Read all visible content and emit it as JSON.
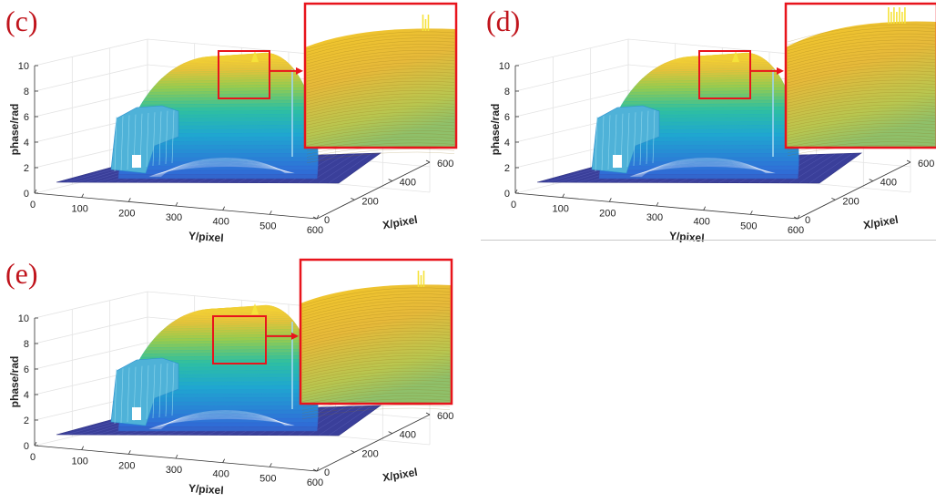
{
  "chart_data": [
    {
      "panel_label": "(c)",
      "type": "surface",
      "zlabel": "phase/rad",
      "ylabel": "Y/pixel",
      "xlabel": "X/pixel",
      "z_ticks": [
        "0",
        "2",
        "4",
        "6",
        "8",
        "10"
      ],
      "y_ticks": [
        "0",
        "100",
        "200",
        "300",
        "400",
        "500",
        "600"
      ],
      "x_ticks": [
        "0",
        "200",
        "400",
        "600"
      ],
      "zlim": [
        0,
        10
      ],
      "ylim": [
        0,
        600
      ],
      "xlim": [
        0,
        600
      ],
      "grid": true,
      "colormap": "parula",
      "inset": "zoomed view of surface peak",
      "peak_phase": 10
    },
    {
      "panel_label": "(d)",
      "type": "surface",
      "zlabel": "phase/rad",
      "ylabel": "Y/pixel",
      "xlabel": "X/pixel",
      "z_ticks": [
        "0",
        "2",
        "4",
        "6",
        "8",
        "10"
      ],
      "y_ticks": [
        "0",
        "100",
        "200",
        "300",
        "400",
        "500",
        "600"
      ],
      "x_ticks": [
        "0",
        "200",
        "400",
        "600"
      ],
      "zlim": [
        0,
        10
      ],
      "ylim": [
        0,
        600
      ],
      "xlim": [
        0,
        600
      ],
      "grid": true,
      "colormap": "parula",
      "inset": "zoomed view of surface peak",
      "peak_phase": 10
    },
    {
      "panel_label": "(e)",
      "type": "surface",
      "zlabel": "phase/rad",
      "ylabel": "Y/pixel",
      "xlabel": "X/pixel",
      "z_ticks": [
        "0",
        "2",
        "4",
        "6",
        "8",
        "10"
      ],
      "y_ticks": [
        "0",
        "100",
        "200",
        "300",
        "400",
        "500",
        "600"
      ],
      "x_ticks": [
        "0",
        "200",
        "400",
        "600"
      ],
      "zlim": [
        0,
        10
      ],
      "ylim": [
        0,
        600
      ],
      "xlim": [
        0,
        600
      ],
      "grid": true,
      "colormap": "parula",
      "inset": "zoomed view of surface peak",
      "peak_phase": 10
    }
  ],
  "colors": {
    "highlight_box": "#e8141c",
    "floor": "#3a3f9a",
    "surface_low": "#2f6fd8",
    "surface_mid": "#1fb5b0",
    "surface_high": "#f5c828",
    "axis": "#333333"
  }
}
